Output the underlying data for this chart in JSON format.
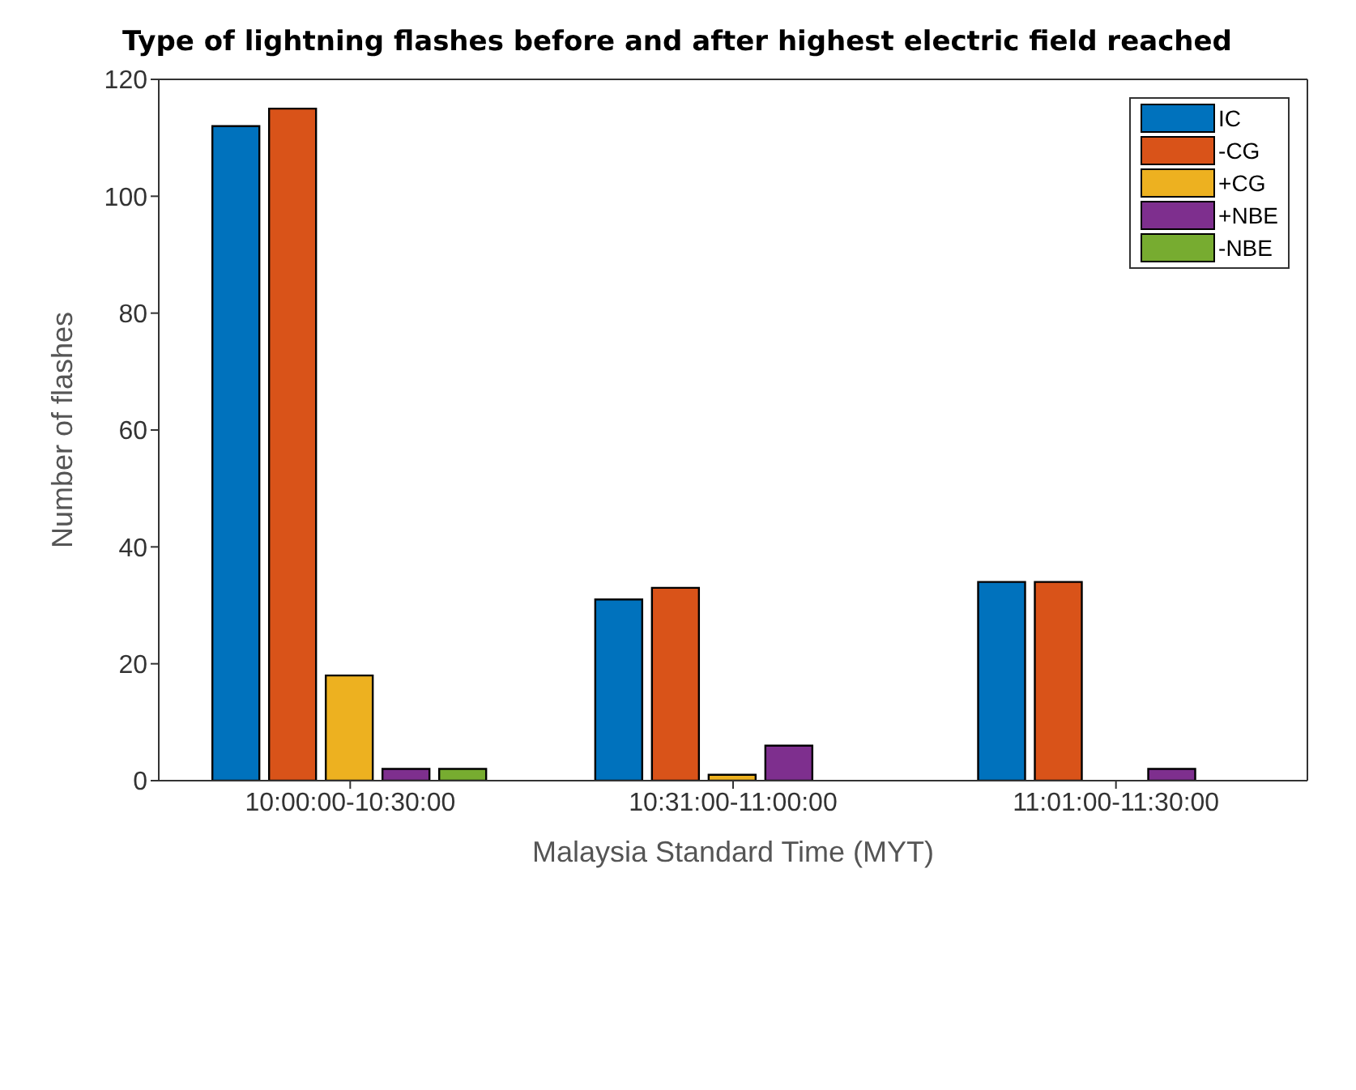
{
  "chart_data": {
    "type": "bar",
    "title": "Type of lightning flashes before and after highest electric field reached",
    "xlabel": "Malaysia Standard Time (MYT)",
    "ylabel": "Number of flashes",
    "categories": [
      "10:00:00-10:30:00",
      "10:31:00-11:00:00",
      "11:01:00-11:30:00"
    ],
    "series": [
      {
        "name": "IC",
        "color": "#0072bd",
        "values": [
          112,
          31,
          34
        ]
      },
      {
        "name": "-CG",
        "color": "#d95319",
        "values": [
          115,
          33,
          34
        ]
      },
      {
        "name": "+CG",
        "color": "#edb120",
        "values": [
          18,
          1,
          0
        ]
      },
      {
        "name": "+NBE",
        "color": "#7e2f8e",
        "values": [
          2,
          6,
          2
        ]
      },
      {
        "name": "-NBE",
        "color": "#77ac30",
        "values": [
          2,
          0,
          0
        ]
      }
    ],
    "ylim": [
      0,
      120
    ],
    "yticks": [
      0,
      20,
      40,
      60,
      80,
      100,
      120
    ],
    "grid": false,
    "legend": "top right"
  }
}
